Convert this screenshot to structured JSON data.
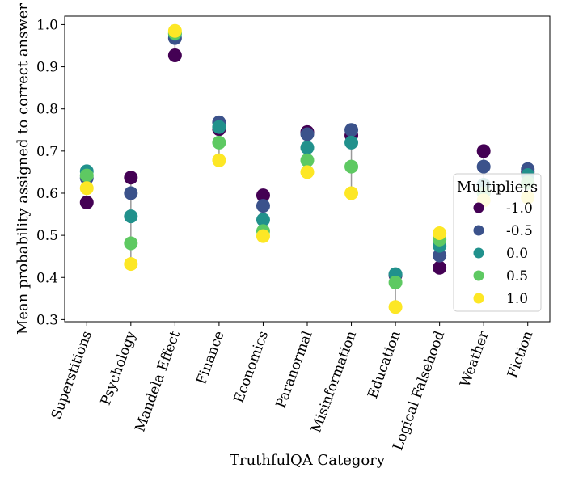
{
  "chart_data": {
    "type": "scatter",
    "xlabel": "TruthfulQA Category",
    "ylabel": "Mean probability assigned to correct answer",
    "ylim": [
      0.295,
      1.02
    ],
    "yticks": [
      "0.3",
      "0.4",
      "0.5",
      "0.6",
      "0.7",
      "0.8",
      "0.9",
      "1.0"
    ],
    "categories": [
      "Superstitions",
      "Psychology",
      "Mandela Effect",
      "Finance",
      "Economics",
      "Paranormal",
      "Misinformation",
      "Education",
      "Logical Falsehood",
      "Weather",
      "Fiction"
    ],
    "legend": {
      "title": "Multipliers",
      "position": "right"
    },
    "series": [
      {
        "name": "-1.0",
        "color": "#440154",
        "values": [
          0.578,
          0.637,
          0.927,
          0.752,
          0.595,
          0.745,
          0.737,
          0.405,
          0.423,
          0.7,
          0.65
        ]
      },
      {
        "name": "-0.5",
        "color": "#3b528b",
        "values": [
          0.636,
          0.6,
          0.968,
          0.768,
          0.57,
          0.74,
          0.75,
          0.407,
          0.452,
          0.663,
          0.657
        ]
      },
      {
        "name": "0.0",
        "color": "#21918c",
        "values": [
          0.652,
          0.545,
          0.978,
          0.757,
          0.537,
          0.708,
          0.72,
          0.408,
          0.475,
          0.62,
          0.643
        ]
      },
      {
        "name": "0.5",
        "color": "#5ec962",
        "values": [
          0.642,
          0.481,
          0.98,
          0.72,
          0.51,
          0.678,
          0.663,
          0.388,
          0.49,
          0.6,
          0.625
        ]
      },
      {
        "name": "1.0",
        "color": "#fde725",
        "values": [
          0.612,
          0.432,
          0.985,
          0.678,
          0.498,
          0.65,
          0.6,
          0.33,
          0.505,
          0.583,
          0.59
        ]
      }
    ]
  }
}
